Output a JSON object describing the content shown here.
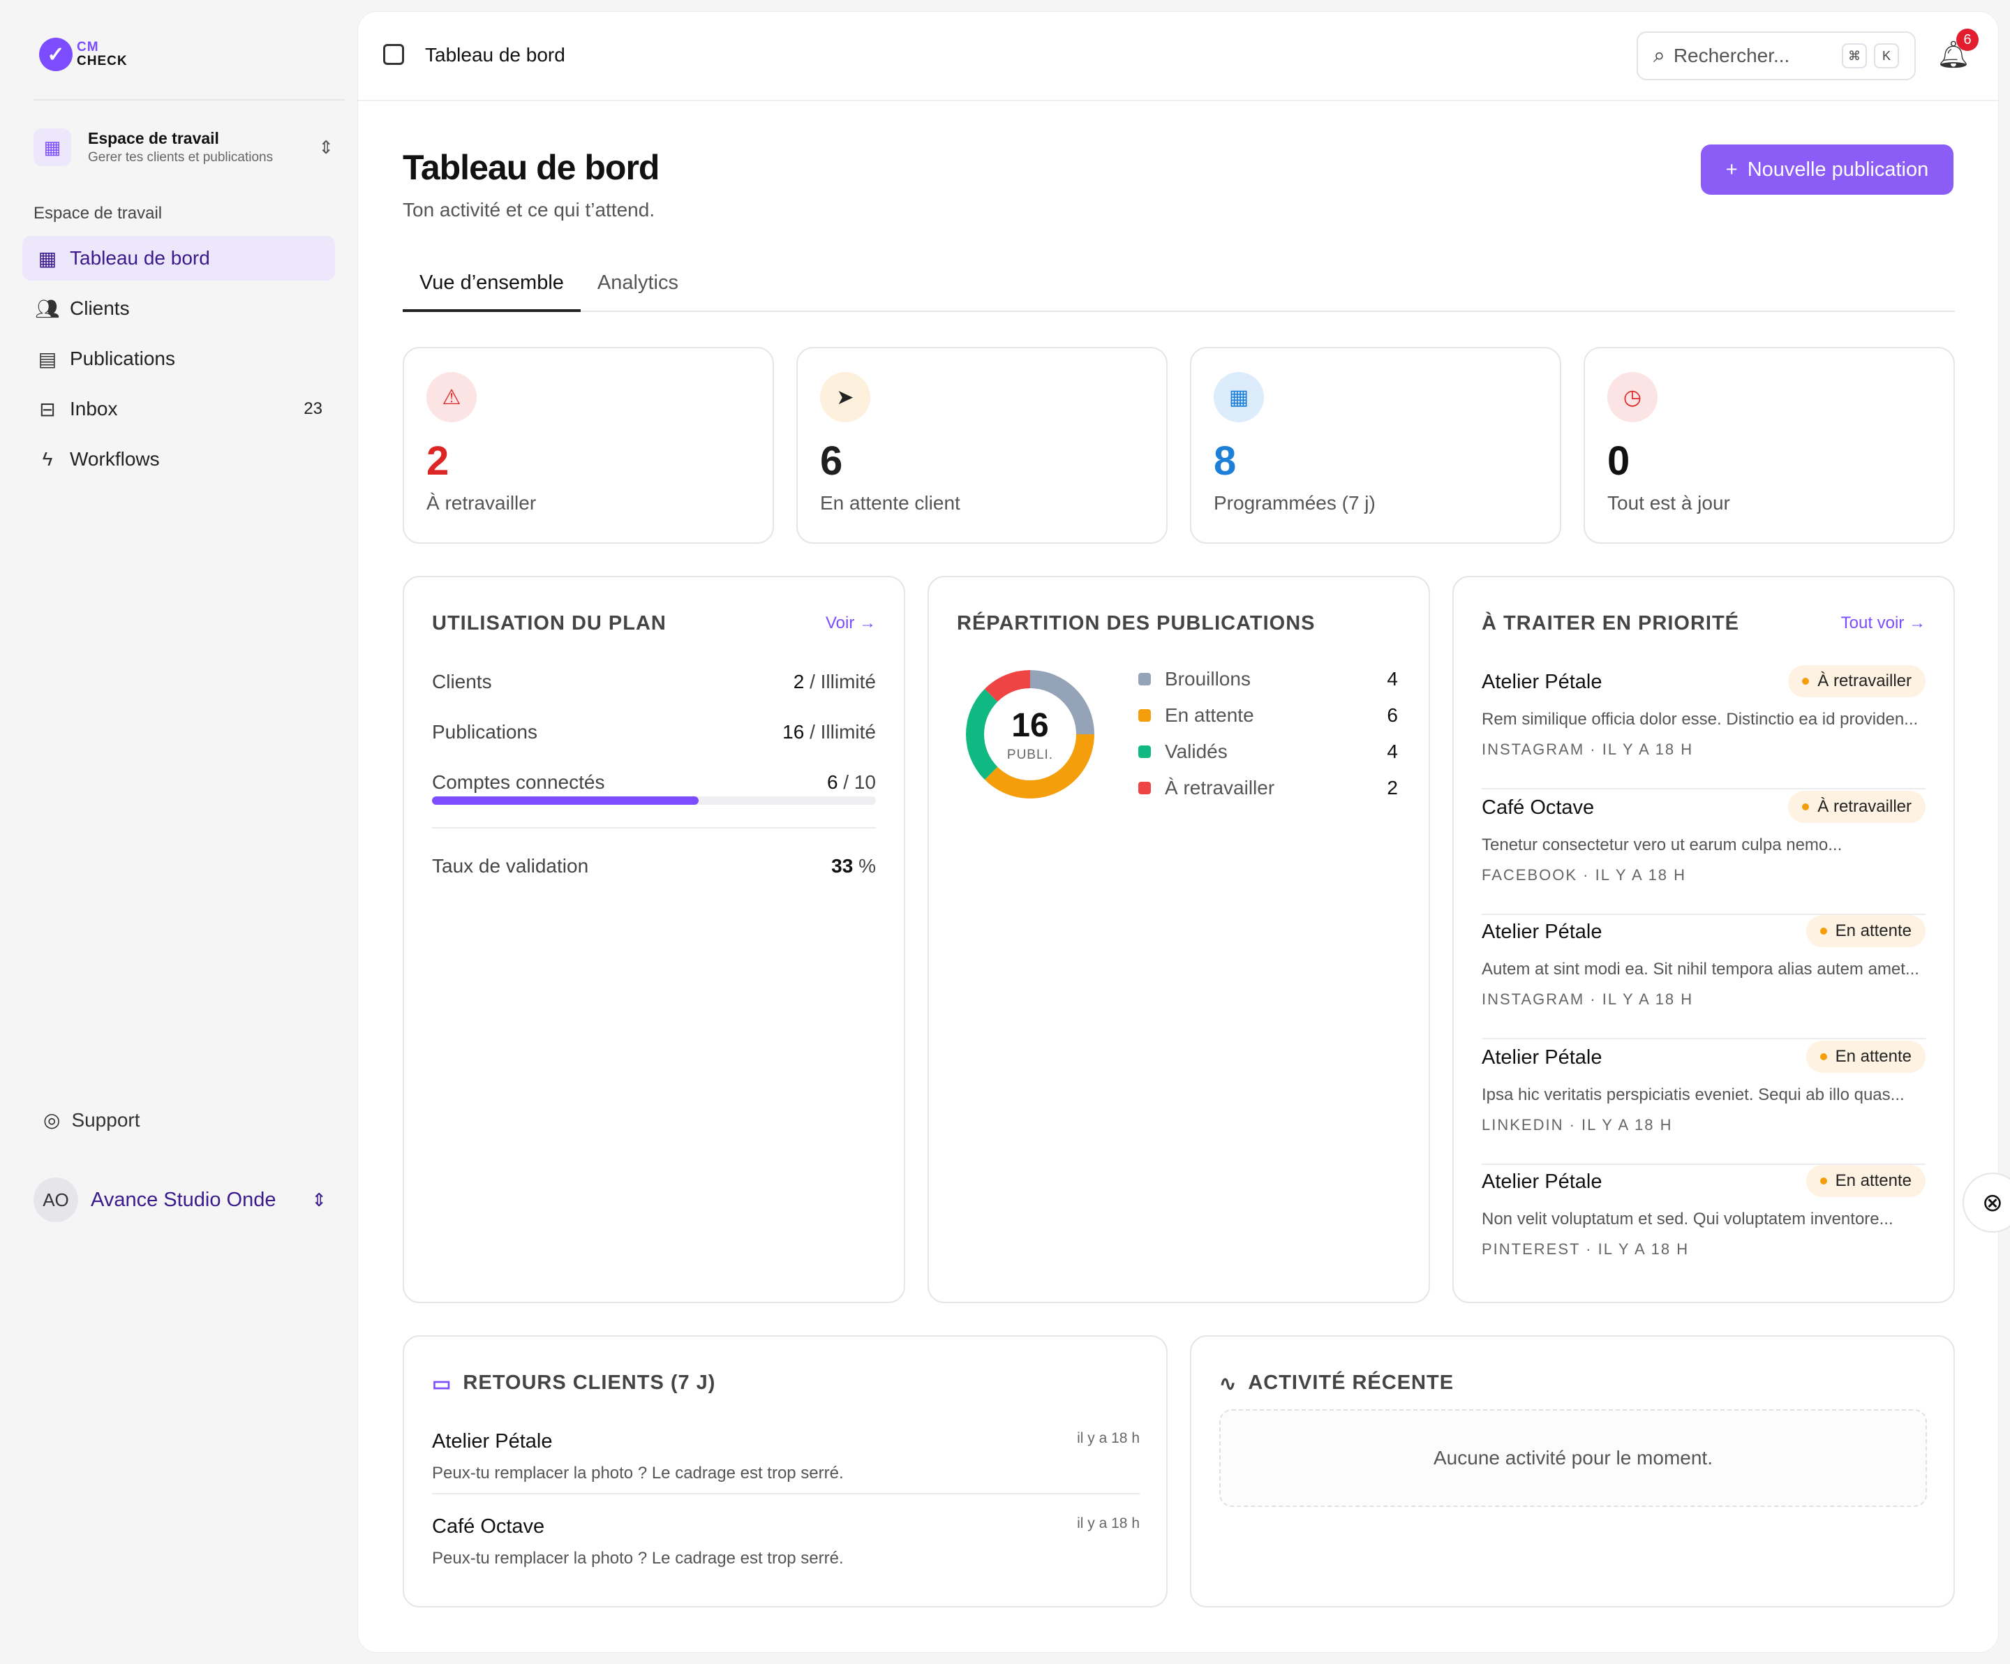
{
  "app": {
    "logo_top": "CM",
    "logo_bottom": "CHECK"
  },
  "workspace": {
    "title": "Espace de travail",
    "subtitle": "Gerer tes clients et publications"
  },
  "sidebar": {
    "section_label": "Espace de travail",
    "items": [
      {
        "label": "Tableau de bord",
        "icon": "grid-icon",
        "count": ""
      },
      {
        "label": "Clients",
        "icon": "users-icon",
        "count": ""
      },
      {
        "label": "Publications",
        "icon": "document-icon",
        "count": ""
      },
      {
        "label": "Inbox",
        "icon": "inbox-icon",
        "count": "23"
      },
      {
        "label": "Workflows",
        "icon": "lightning-icon",
        "count": ""
      }
    ],
    "support_label": "Support",
    "user": {
      "initials": "AO",
      "name": "Avance Studio Onde"
    }
  },
  "topbar": {
    "title": "Tableau de bord",
    "search_placeholder": "Rechercher...",
    "kbd1": "⌘",
    "kbd2": "K",
    "notif_count": "6"
  },
  "page": {
    "title": "Tableau de bord",
    "subtitle": "Ton activité et ce qui t’attend.",
    "new_button": "Nouvelle publication",
    "tabs": [
      "Vue d’ensemble",
      "Analytics"
    ]
  },
  "stats": [
    {
      "value": "2",
      "label": "À retravailler",
      "color": "#dc2626",
      "bg": "#fde4e4",
      "icon": "⚠"
    },
    {
      "value": "6",
      "label": "En attente client",
      "color": "#1f1f1f",
      "bg": "#fdf0dc",
      "icon": "➤"
    },
    {
      "value": "8",
      "label": "Programmées (7 j)",
      "color": "#1d7fd8",
      "bg": "#dcecfb",
      "icon": "▦"
    },
    {
      "value": "0",
      "label": "Tout est à jour",
      "color": "#111111",
      "bg": "#fde4e4",
      "icon": "◷"
    }
  ],
  "plan": {
    "title": "UTILISATION DU PLAN",
    "link": "Voir →",
    "rows": [
      {
        "label": "Clients",
        "value": "2",
        "suffix": " / Illimité"
      },
      {
        "label": "Publications",
        "value": "16",
        "suffix": " / Illimité"
      },
      {
        "label": "Comptes connectés",
        "value": "6",
        "suffix": " / 10"
      }
    ],
    "accounts_progress": 0.6,
    "validation_label": "Taux de validation",
    "validation_value": "33",
    "validation_suffix": " %"
  },
  "distribution": {
    "title": "RÉPARTITION DES PUBLICATIONS",
    "total": "16",
    "total_label": "PUBLI."
  },
  "chart_data": {
    "type": "pie",
    "categories": [
      "Brouillons",
      "En attente",
      "Validés",
      "À retravailler"
    ],
    "values": [
      4,
      6,
      4,
      2
    ],
    "colors": [
      "#94a3b8",
      "#f59e0b",
      "#10b981",
      "#ef4444"
    ]
  },
  "priority": {
    "title": "À TRAITER EN PRIORITÉ",
    "link": "Tout voir →",
    "items": [
      {
        "name": "Atelier Pétale",
        "status": "À retravailler",
        "text": "Rem similique officia dolor esse. Distinctio ea id providen...",
        "meta": "INSTAGRAM · IL Y A 18 H"
      },
      {
        "name": "Café Octave",
        "status": "À retravailler",
        "text": "Tenetur consectetur vero ut earum culpa nemo...",
        "meta": "FACEBOOK · IL Y A 18 H"
      },
      {
        "name": "Atelier Pétale",
        "status": "En attente",
        "text": "Autem at sint modi ea. Sit nihil tempora alias autem amet...",
        "meta": "INSTAGRAM · IL Y A 18 H"
      },
      {
        "name": "Atelier Pétale",
        "status": "En attente",
        "text": "Ipsa hic veritatis perspiciatis eveniet. Sequi ab illo quas...",
        "meta": "LINKEDIN · IL Y A 18 H"
      },
      {
        "name": "Atelier Pétale",
        "status": "En attente",
        "text": "Non velit voluptatum et sed. Qui voluptatem inventore...",
        "meta": "PINTEREST · IL Y A 18 H"
      }
    ]
  },
  "feedback": {
    "title": "RETOURS CLIENTS (7 J)",
    "items": [
      {
        "name": "Atelier Pétale",
        "time": "il y a 18 h",
        "text": "Peux-tu remplacer la photo ? Le cadrage est trop serré."
      },
      {
        "name": "Café Octave",
        "time": "il y a 18 h",
        "text": "Peux-tu remplacer la photo ? Le cadrage est trop serré."
      }
    ]
  },
  "activity": {
    "title": "ACTIVITÉ RÉCENTE",
    "empty": "Aucune activité pour le moment."
  }
}
